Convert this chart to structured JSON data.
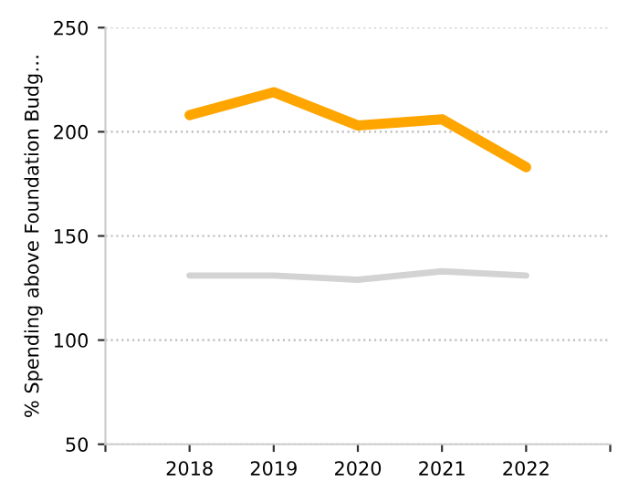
{
  "chart_data": {
    "type": "line",
    "ylabel": "% Spending above Foundation Budg…",
    "x": [
      2018,
      2019,
      2020,
      2021,
      2022
    ],
    "series": [
      {
        "color": "#ffa500",
        "values": [
          208,
          219,
          203,
          206,
          183
        ]
      },
      {
        "color": "#d3d3d3",
        "values": [
          131,
          131,
          129,
          133,
          131
        ]
      }
    ],
    "xlim": [
      2017,
      2023
    ],
    "xticks": [
      {
        "value": 2017,
        "label": null
      },
      2018,
      2019,
      2020,
      2021,
      2022,
      {
        "value": 2023,
        "label": null
      }
    ],
    "ylim": [
      50,
      250
    ],
    "yticks": [
      50,
      100,
      150,
      200,
      250
    ],
    "grid": "y",
    "marker": "none",
    "line_style": "solid"
  }
}
